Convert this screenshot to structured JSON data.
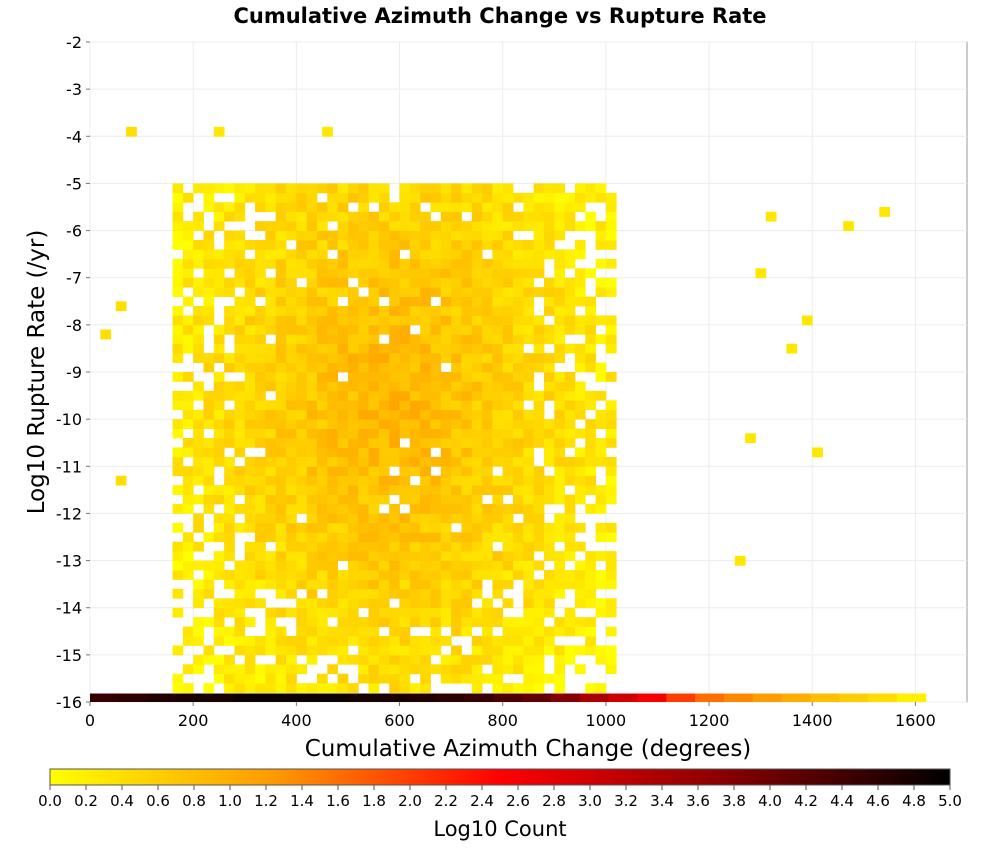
{
  "chart_data": {
    "type": "heatmap",
    "title": "Cumulative Azimuth Change vs Rupture Rate",
    "xlabel": "Cumulative Azimuth Change (degrees)",
    "ylabel": "Log10 Rupture Rate (/yr)",
    "xlim": [
      0,
      1700
    ],
    "ylim": [
      -16,
      -2
    ],
    "x_ticks": [
      "0",
      "200",
      "400",
      "600",
      "800",
      "1000",
      "1200",
      "1400",
      "1600"
    ],
    "y_ticks": [
      "-2",
      "-3",
      "-4",
      "-5",
      "-6",
      "-7",
      "-8",
      "-9",
      "-10",
      "-11",
      "-12",
      "-13",
      "-14",
      "-15",
      "-16"
    ],
    "bin_width_x": 20,
    "bin_height_y": 0.2,
    "grid": true,
    "colorbar": {
      "label": "Log10 Count",
      "range": [
        0,
        5
      ],
      "ticks": [
        "0.0",
        "0.2",
        "0.4",
        "0.6",
        "0.8",
        "1.0",
        "1.2",
        "1.4",
        "1.6",
        "1.8",
        "2.0",
        "2.2",
        "2.4",
        "2.6",
        "2.8",
        "3.0",
        "3.2",
        "3.4",
        "3.6",
        "3.8",
        "4.0",
        "4.2",
        "4.4",
        "4.6",
        "4.8",
        "5.0"
      ],
      "colors": [
        "#ffff00",
        "#ff9900",
        "#ff0000",
        "#880000",
        "#000000"
      ]
    },
    "bottom_row": {
      "y": -15.9,
      "x_start": 0,
      "x_end": 1620,
      "note": "",
      "values": [
        4.5,
        4.6,
        4.7,
        4.8,
        4.8,
        4.9,
        4.9,
        4.9,
        4.9,
        4.8,
        4.8,
        4.7,
        4.6,
        4.5,
        4.3,
        4.1,
        3.8,
        3.4,
        3.0,
        2.6,
        2.0,
        1.6,
        1.4,
        1.2,
        1.0,
        0.8,
        0.6,
        0.4,
        0.2
      ]
    },
    "density_summary": {
      "dense_x_range": [
        160,
        1020
      ],
      "dense_y_range": [
        -15.8,
        -5.0
      ],
      "typical_log10_count_range": [
        0.0,
        0.9
      ]
    },
    "points": [
      {
        "x": 70,
        "y": -4.0,
        "v": 0.4
      },
      {
        "x": 240,
        "y": -4.0,
        "v": 0.3
      },
      {
        "x": 450,
        "y": -4.0,
        "v": 0.3
      },
      {
        "x": 1310,
        "y": -5.8,
        "v": 0.3
      },
      {
        "x": 1460,
        "y": -6.0,
        "v": 0.3
      },
      {
        "x": 1530,
        "y": -5.7,
        "v": 0.3
      },
      {
        "x": 1290,
        "y": -7.0,
        "v": 0.3
      },
      {
        "x": 1350,
        "y": -8.6,
        "v": 0.3
      },
      {
        "x": 1380,
        "y": -8.0,
        "v": 0.3
      },
      {
        "x": 1400,
        "y": -10.8,
        "v": 0.3
      },
      {
        "x": 1270,
        "y": -10.5,
        "v": 0.3
      },
      {
        "x": 20,
        "y": -8.3,
        "v": 0.4
      },
      {
        "x": 50,
        "y": -7.7,
        "v": 0.4
      },
      {
        "x": 50,
        "y": -11.4,
        "v": 0.4
      },
      {
        "x": 1250,
        "y": -13.1,
        "v": 0.3
      }
    ]
  }
}
